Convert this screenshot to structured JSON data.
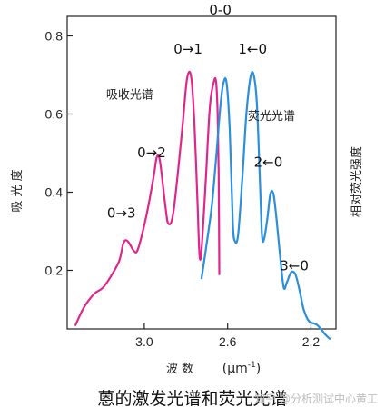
{
  "chart_data": {
    "type": "line",
    "x_axis": {
      "label": "波 数",
      "unit": "(μm",
      "unit_sup": "-1",
      "unit_close": ")",
      "reversed": true,
      "ticks": [
        3.0,
        2.6,
        2.2
      ],
      "tick_labels": [
        "3.0",
        "2.6",
        "2.2"
      ],
      "range": [
        3.37,
        2.08
      ]
    },
    "y_axis_left": {
      "label": "吸 光 度",
      "ticks": [
        0.2,
        0.4,
        0.6,
        0.8
      ],
      "tick_labels": [
        "0.2",
        "0.4",
        "0.6",
        "0.8"
      ],
      "range": [
        0.05,
        0.85
      ]
    },
    "y_axis_right": {
      "label": "相对荧光强度"
    },
    "series": [
      {
        "name": "吸收光谱",
        "color": "#e0268a",
        "points": [
          [
            3.33,
            0.06
          ],
          [
            3.29,
            0.105
          ],
          [
            3.24,
            0.14
          ],
          [
            3.2,
            0.155
          ],
          [
            3.16,
            0.185
          ],
          [
            3.12,
            0.225
          ],
          [
            3.1,
            0.27
          ],
          [
            3.08,
            0.275
          ],
          [
            3.05,
            0.25
          ],
          [
            3.03,
            0.255
          ],
          [
            2.99,
            0.34
          ],
          [
            2.955,
            0.44
          ],
          [
            2.94,
            0.49
          ],
          [
            2.925,
            0.48
          ],
          [
            2.9,
            0.37
          ],
          [
            2.885,
            0.32
          ],
          [
            2.86,
            0.35
          ],
          [
            2.82,
            0.55
          ],
          [
            2.795,
            0.69
          ],
          [
            2.775,
            0.695
          ],
          [
            2.76,
            0.58
          ],
          [
            2.745,
            0.38
          ],
          [
            2.735,
            0.24
          ],
          [
            2.725,
            0.255
          ],
          [
            2.705,
            0.43
          ],
          [
            2.685,
            0.62
          ],
          [
            2.665,
            0.685
          ],
          [
            2.655,
            0.68
          ],
          [
            2.648,
            0.6
          ],
          [
            2.643,
            0.45
          ],
          [
            2.64,
            0.19
          ]
        ]
      },
      {
        "name": "荧光光谱",
        "color": "#2b8fdc",
        "points": [
          [
            2.725,
            0.18
          ],
          [
            2.7,
            0.27
          ],
          [
            2.675,
            0.37
          ],
          [
            2.655,
            0.49
          ],
          [
            2.635,
            0.62
          ],
          [
            2.62,
            0.68
          ],
          [
            2.605,
            0.68
          ],
          [
            2.59,
            0.56
          ],
          [
            2.575,
            0.32
          ],
          [
            2.565,
            0.275
          ],
          [
            2.55,
            0.29
          ],
          [
            2.53,
            0.43
          ],
          [
            2.51,
            0.6
          ],
          [
            2.49,
            0.695
          ],
          [
            2.475,
            0.7
          ],
          [
            2.46,
            0.63
          ],
          [
            2.445,
            0.43
          ],
          [
            2.435,
            0.29
          ],
          [
            2.425,
            0.28
          ],
          [
            2.41,
            0.33
          ],
          [
            2.395,
            0.395
          ],
          [
            2.38,
            0.395
          ],
          [
            2.365,
            0.33
          ],
          [
            2.345,
            0.22
          ],
          [
            2.33,
            0.155
          ],
          [
            2.315,
            0.17
          ],
          [
            2.295,
            0.195
          ],
          [
            2.275,
            0.19
          ],
          [
            2.255,
            0.15
          ],
          [
            2.235,
            0.1
          ],
          [
            2.21,
            0.07
          ],
          [
            2.17,
            0.06
          ],
          [
            2.13,
            0.035
          ],
          [
            2.11,
            0.025
          ]
        ]
      }
    ],
    "annotations": [
      {
        "text": "0→3",
        "x": 3.11,
        "y": 0.335
      },
      {
        "text": "0→2",
        "x": 2.965,
        "y": 0.49
      },
      {
        "text": "0→1",
        "x": 2.79,
        "y": 0.755
      },
      {
        "text": "0-0",
        "x": 2.635,
        "y": 0.855
      },
      {
        "text": "1←0",
        "x": 2.48,
        "y": 0.755
      },
      {
        "text": "2←0",
        "x": 2.405,
        "y": 0.465
      },
      {
        "text": "3←0",
        "x": 2.28,
        "y": 0.2
      }
    ],
    "series_labels": [
      {
        "text": "吸收光谱",
        "x": 3.07,
        "y": 0.64
      },
      {
        "text": "荧光光谱",
        "x": 2.39,
        "y": 0.585
      }
    ],
    "caption": "蒽的激发光谱和荧光光谱"
  },
  "watermark": "知乎 @分析测试中心黄工"
}
